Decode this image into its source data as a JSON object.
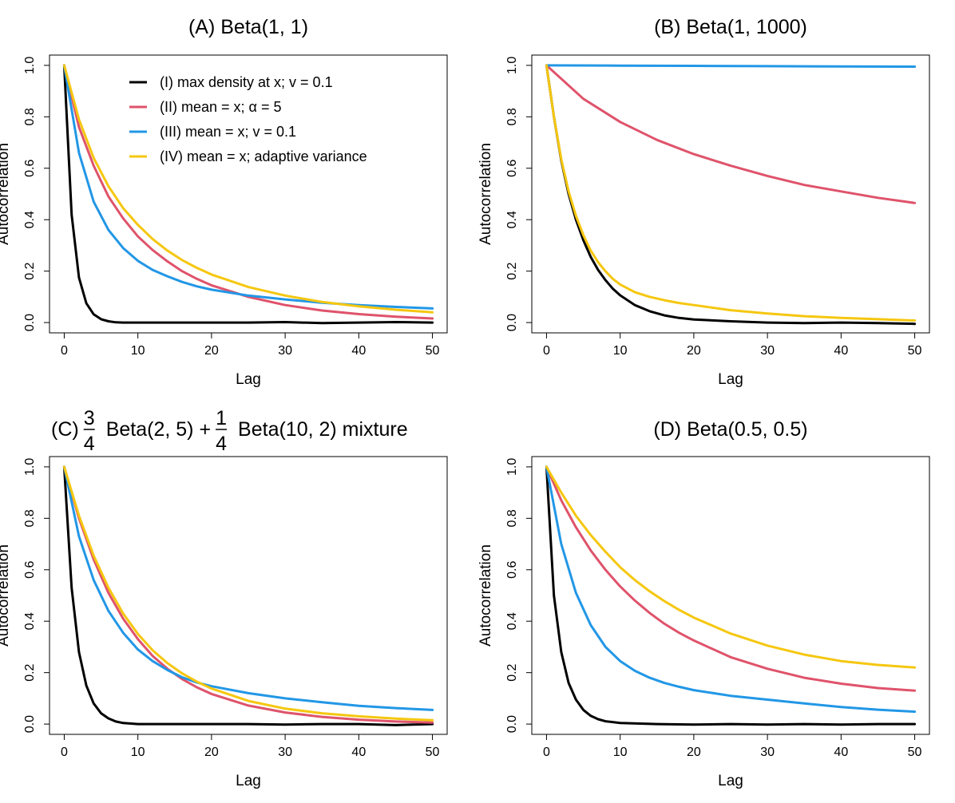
{
  "colors": {
    "I": "#000000",
    "II": "#df536b",
    "III": "#2297e6",
    "IV": "#f5c710"
  },
  "legend": {
    "items": [
      {
        "key": "I",
        "label": "(I) max density at x; v = 0.1"
      },
      {
        "key": "II",
        "label": "(II) mean = x; α = 5"
      },
      {
        "key": "III",
        "label": "(III) mean = x; v = 0.1"
      },
      {
        "key": "IV",
        "label": "(IV) mean = x; adaptive variance"
      }
    ]
  },
  "chart_data": [
    {
      "type": "line",
      "title": "(A) Beta(1, 1)",
      "xlabel": "Lag",
      "ylabel": "Autocorrelation",
      "xlim": [
        0,
        50
      ],
      "ylim": [
        0,
        1
      ],
      "xticks": [
        "0",
        "10",
        "20",
        "30",
        "40",
        "50"
      ],
      "yticks": [
        "0.0",
        "0.2",
        "0.4",
        "0.6",
        "0.8",
        "1.0"
      ],
      "legend_position": "top-right",
      "series": [
        {
          "key": "I",
          "x": [
            0,
            1,
            2,
            3,
            4,
            5,
            6,
            7,
            8,
            10,
            15,
            20,
            25,
            30,
            35,
            40,
            45,
            50
          ],
          "y": [
            1.0,
            0.42,
            0.175,
            0.075,
            0.032,
            0.013,
            0.005,
            0.001,
            0.0,
            0.0,
            0.0,
            0.0,
            0.0,
            0.002,
            -0.002,
            0.0,
            0.002,
            0.0
          ]
        },
        {
          "key": "II",
          "x": [
            0,
            2,
            4,
            6,
            8,
            10,
            12,
            14,
            16,
            18,
            20,
            25,
            30,
            35,
            40,
            45,
            50
          ],
          "y": [
            1.0,
            0.76,
            0.61,
            0.49,
            0.405,
            0.335,
            0.282,
            0.238,
            0.2,
            0.17,
            0.145,
            0.1,
            0.068,
            0.047,
            0.033,
            0.023,
            0.016
          ]
        },
        {
          "key": "III",
          "x": [
            0,
            2,
            4,
            6,
            8,
            10,
            12,
            14,
            16,
            18,
            20,
            25,
            30,
            35,
            40,
            45,
            50
          ],
          "y": [
            1.0,
            0.66,
            0.47,
            0.36,
            0.29,
            0.24,
            0.205,
            0.18,
            0.158,
            0.141,
            0.128,
            0.105,
            0.09,
            0.077,
            0.068,
            0.061,
            0.055
          ]
        },
        {
          "key": "IV",
          "x": [
            0,
            2,
            4,
            6,
            8,
            10,
            12,
            14,
            16,
            18,
            20,
            25,
            30,
            35,
            40,
            45,
            50
          ],
          "y": [
            1.0,
            0.79,
            0.64,
            0.53,
            0.445,
            0.38,
            0.325,
            0.28,
            0.243,
            0.213,
            0.187,
            0.138,
            0.105,
            0.08,
            0.063,
            0.05,
            0.04
          ]
        }
      ]
    },
    {
      "type": "line",
      "title": "(B) Beta(1, 1000)",
      "xlabel": "Lag",
      "ylabel": "Autocorrelation",
      "xlim": [
        0,
        50
      ],
      "ylim": [
        0,
        1
      ],
      "xticks": [
        "0",
        "10",
        "20",
        "30",
        "40",
        "50"
      ],
      "yticks": [
        "0.0",
        "0.2",
        "0.4",
        "0.6",
        "0.8",
        "1.0"
      ],
      "series": [
        {
          "key": "I",
          "x": [
            0,
            1,
            2,
            3,
            4,
            5,
            6,
            7,
            8,
            9,
            10,
            12,
            14,
            16,
            18,
            20,
            25,
            30,
            35,
            40,
            45,
            50
          ],
          "y": [
            1.0,
            0.8,
            0.63,
            0.5,
            0.4,
            0.32,
            0.255,
            0.205,
            0.165,
            0.132,
            0.106,
            0.068,
            0.044,
            0.028,
            0.018,
            0.012,
            0.005,
            0.0,
            -0.002,
            0.0,
            -0.002,
            -0.005
          ]
        },
        {
          "key": "II",
          "x": [
            0,
            5,
            10,
            15,
            20,
            25,
            30,
            35,
            40,
            45,
            50
          ],
          "y": [
            1.0,
            0.87,
            0.78,
            0.71,
            0.655,
            0.61,
            0.57,
            0.535,
            0.51,
            0.485,
            0.465
          ]
        },
        {
          "key": "III",
          "x": [
            0,
            10,
            20,
            30,
            40,
            50
          ],
          "y": [
            1.0,
            0.999,
            0.998,
            0.997,
            0.996,
            0.995
          ]
        },
        {
          "key": "IV",
          "x": [
            0,
            1,
            2,
            3,
            4,
            5,
            6,
            7,
            8,
            9,
            10,
            12,
            14,
            16,
            18,
            20,
            25,
            30,
            35,
            40,
            45,
            50
          ],
          "y": [
            1.0,
            0.8,
            0.635,
            0.51,
            0.415,
            0.34,
            0.28,
            0.235,
            0.2,
            0.17,
            0.148,
            0.118,
            0.1,
            0.087,
            0.076,
            0.068,
            0.048,
            0.035,
            0.025,
            0.018,
            0.013,
            0.008
          ]
        }
      ]
    },
    {
      "type": "line",
      "title_prefix": "(C)",
      "title_frac1": {
        "num": "3",
        "den": "4"
      },
      "title_mid": "Beta(2, 5) +",
      "title_frac2": {
        "num": "1",
        "den": "4"
      },
      "title_suffix": "Beta(10, 2) mixture",
      "xlabel": "Lag",
      "ylabel": "Autocorrelation",
      "xlim": [
        0,
        50
      ],
      "ylim": [
        0,
        1
      ],
      "xticks": [
        "0",
        "10",
        "20",
        "30",
        "40",
        "50"
      ],
      "yticks": [
        "0.0",
        "0.2",
        "0.4",
        "0.6",
        "0.8",
        "1.0"
      ],
      "series": [
        {
          "key": "I",
          "x": [
            0,
            1,
            2,
            3,
            4,
            5,
            6,
            7,
            8,
            10,
            15,
            20,
            25,
            30,
            35,
            40,
            45,
            50
          ],
          "y": [
            1.0,
            0.53,
            0.28,
            0.15,
            0.08,
            0.042,
            0.022,
            0.01,
            0.004,
            0.0,
            0.0,
            0.0,
            0.0,
            -0.002,
            0.0,
            0.0,
            -0.004,
            0.0
          ]
        },
        {
          "key": "II",
          "x": [
            0,
            2,
            4,
            6,
            8,
            10,
            12,
            14,
            16,
            18,
            20,
            25,
            30,
            35,
            40,
            45,
            50
          ],
          "y": [
            1.0,
            0.8,
            0.64,
            0.51,
            0.41,
            0.33,
            0.265,
            0.215,
            0.175,
            0.143,
            0.117,
            0.072,
            0.045,
            0.028,
            0.017,
            0.01,
            0.006
          ]
        },
        {
          "key": "III",
          "x": [
            0,
            2,
            4,
            6,
            8,
            10,
            12,
            14,
            16,
            18,
            20,
            25,
            30,
            35,
            40,
            45,
            50
          ],
          "y": [
            1.0,
            0.73,
            0.56,
            0.44,
            0.355,
            0.29,
            0.245,
            0.21,
            0.182,
            0.162,
            0.147,
            0.12,
            0.1,
            0.085,
            0.071,
            0.062,
            0.055
          ]
        },
        {
          "key": "IV",
          "x": [
            0,
            2,
            4,
            6,
            8,
            10,
            12,
            14,
            16,
            18,
            20,
            25,
            30,
            35,
            40,
            45,
            50
          ],
          "y": [
            1.0,
            0.81,
            0.655,
            0.53,
            0.43,
            0.35,
            0.287,
            0.237,
            0.197,
            0.165,
            0.138,
            0.09,
            0.06,
            0.042,
            0.03,
            0.021,
            0.015
          ]
        }
      ]
    },
    {
      "type": "line",
      "title": "(D) Beta(0.5, 0.5)",
      "xlabel": "Lag",
      "ylabel": "Autocorrelation",
      "xlim": [
        0,
        50
      ],
      "ylim": [
        0,
        1
      ],
      "xticks": [
        "0",
        "10",
        "20",
        "30",
        "40",
        "50"
      ],
      "yticks": [
        "0.0",
        "0.2",
        "0.4",
        "0.6",
        "0.8",
        "1.0"
      ],
      "series": [
        {
          "key": "I",
          "x": [
            0,
            1,
            2,
            3,
            4,
            5,
            6,
            7,
            8,
            10,
            15,
            20,
            25,
            30,
            35,
            40,
            45,
            50
          ],
          "y": [
            1.0,
            0.5,
            0.28,
            0.16,
            0.095,
            0.055,
            0.032,
            0.019,
            0.011,
            0.004,
            0.0,
            -0.002,
            0.0,
            -0.002,
            0.0,
            -0.002,
            0.0,
            0.0
          ]
        },
        {
          "key": "II",
          "x": [
            0,
            2,
            4,
            6,
            8,
            10,
            12,
            14,
            16,
            18,
            20,
            25,
            30,
            35,
            40,
            45,
            50
          ],
          "y": [
            1.0,
            0.87,
            0.765,
            0.675,
            0.6,
            0.535,
            0.48,
            0.432,
            0.39,
            0.355,
            0.325,
            0.26,
            0.215,
            0.18,
            0.157,
            0.14,
            0.13
          ]
        },
        {
          "key": "III",
          "x": [
            0,
            2,
            4,
            6,
            8,
            10,
            12,
            14,
            16,
            18,
            20,
            25,
            30,
            35,
            40,
            45,
            50
          ],
          "y": [
            1.0,
            0.7,
            0.51,
            0.385,
            0.3,
            0.245,
            0.207,
            0.18,
            0.16,
            0.145,
            0.132,
            0.11,
            0.095,
            0.08,
            0.066,
            0.056,
            0.048
          ]
        },
        {
          "key": "IV",
          "x": [
            0,
            2,
            4,
            6,
            8,
            10,
            12,
            14,
            16,
            18,
            20,
            25,
            30,
            35,
            40,
            45,
            50
          ],
          "y": [
            1.0,
            0.9,
            0.81,
            0.735,
            0.67,
            0.61,
            0.56,
            0.516,
            0.478,
            0.444,
            0.414,
            0.352,
            0.305,
            0.27,
            0.245,
            0.23,
            0.22
          ]
        }
      ]
    }
  ]
}
